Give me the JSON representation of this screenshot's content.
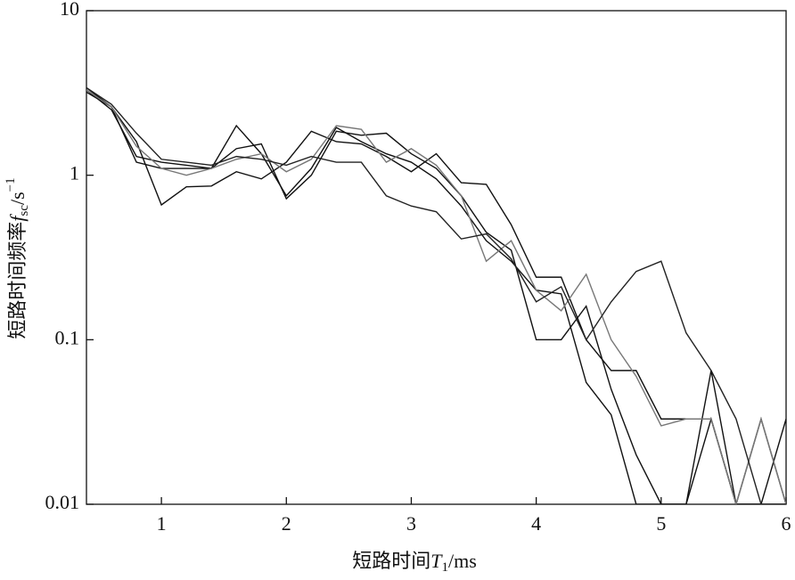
{
  "chart_data": {
    "type": "line",
    "x_label": {
      "text": "短路时间",
      "var": "T",
      "sub": "1",
      "unit": "/ms"
    },
    "y_label": {
      "text": "短路时间频率",
      "var": "f",
      "sub": "sc",
      "unit": "/s",
      "sup": "−1"
    },
    "x": [
      0.4,
      0.6,
      0.8,
      1.0,
      1.2,
      1.4,
      1.6,
      1.8,
      2.0,
      2.2,
      2.4,
      2.6,
      2.8,
      3.0,
      3.2,
      3.4,
      3.6,
      3.8,
      4.0,
      4.2,
      4.4,
      4.6,
      4.8,
      5.0,
      5.2,
      5.4,
      5.6,
      5.8,
      6.0
    ],
    "series": [
      {
        "color": "#111111",
        "values": [
          3.4,
          2.6,
          1.6,
          0.66,
          0.85,
          0.86,
          1.05,
          0.95,
          1.2,
          1.85,
          1.6,
          1.55,
          1.3,
          1.05,
          1.35,
          0.9,
          0.88,
          0.5,
          0.24,
          0.24,
          0.1,
          0.065,
          0.065,
          0.033,
          0.033,
          0.033,
          0.01,
          0.033,
          0.01
        ]
      },
      {
        "color": "#111111",
        "values": [
          3.3,
          2.5,
          1.3,
          1.2,
          1.15,
          1.1,
          1.45,
          1.55,
          0.72,
          1.0,
          1.85,
          1.75,
          1.8,
          1.35,
          1.1,
          0.75,
          0.45,
          0.35,
          0.1,
          0.1,
          0.16,
          0.05,
          0.02,
          0.01,
          0.01,
          0.033,
          0.01,
          0.01,
          0.033
        ]
      },
      {
        "color": "#111111",
        "values": [
          3.2,
          2.6,
          1.2,
          1.1,
          1.1,
          1.1,
          2.0,
          1.35,
          0.75,
          1.1,
          1.95,
          1.6,
          1.35,
          1.2,
          0.95,
          0.65,
          0.4,
          0.3,
          0.2,
          0.19,
          0.055,
          0.035,
          0.01,
          0.01,
          0.01,
          0.065,
          0.01,
          0.01,
          0.01
        ]
      },
      {
        "color": "#777777",
        "values": [
          3.3,
          2.6,
          1.5,
          1.1,
          1.0,
          1.1,
          1.25,
          1.35,
          1.05,
          1.25,
          2.0,
          1.9,
          1.2,
          1.45,
          1.15,
          0.75,
          0.3,
          0.4,
          0.2,
          0.15,
          0.25,
          0.1,
          0.06,
          0.03,
          0.033,
          0.033,
          0.01,
          0.033,
          0.01
        ]
      },
      {
        "color": "#222222",
        "values": [
          3.4,
          2.7,
          1.8,
          1.25,
          1.2,
          1.15,
          1.3,
          1.25,
          1.15,
          1.3,
          1.2,
          1.2,
          0.75,
          0.65,
          0.6,
          0.41,
          0.44,
          0.31,
          0.17,
          0.21,
          0.1,
          0.17,
          0.26,
          0.3,
          0.11,
          0.065,
          0.033,
          0.01,
          0.01
        ]
      }
    ],
    "xlim": [
      0.4,
      6
    ],
    "xticks": [
      1,
      2,
      3,
      4,
      5,
      6
    ],
    "ylim": [
      0.01,
      10
    ],
    "yticks": [
      0.01,
      0.1,
      1,
      10
    ],
    "log_y": true
  }
}
